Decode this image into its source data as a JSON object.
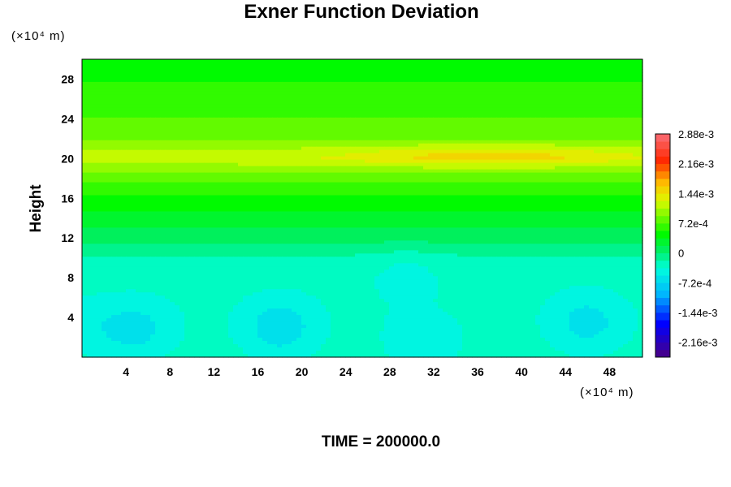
{
  "chart_data": {
    "type": "heatmap",
    "title": "Exner Function Deviation",
    "ylabel": "Height",
    "y_unit": "(×10⁴ m)",
    "x_unit": "(×10⁴ m)",
    "xlim": [
      0,
      51
    ],
    "ylim": [
      0,
      30
    ],
    "x_ticks": [
      "4",
      "8",
      "12",
      "16",
      "20",
      "24",
      "28",
      "32",
      "36",
      "40",
      "44",
      "48"
    ],
    "y_ticks": [
      "4",
      "8",
      "12",
      "16",
      "20",
      "24",
      "28"
    ],
    "colorbar": {
      "min": -0.00252,
      "max": 0.00288,
      "labels": [
        "2.88e-3",
        "2.16e-3",
        "1.44e-3",
        "7.2e-4",
        "0",
        "-7.2e-4",
        "-1.44e-3",
        "-2.16e-3"
      ]
    },
    "footer": "TIME = 200000.0",
    "background_profile": {
      "heights": [
        0,
        2,
        4,
        6,
        8,
        10,
        11,
        12,
        13,
        14,
        15,
        16,
        17,
        18,
        19,
        20,
        21,
        22,
        24,
        26,
        28,
        30
      ],
      "values": [
        -0.0003,
        -0.00032,
        -0.00033,
        -0.00032,
        -0.0003,
        -0.00022,
        -4e-05,
        8e-05,
        0.00018,
        0.00028,
        0.00038,
        0.00048,
        0.00062,
        0.0008,
        0.001,
        0.00118,
        0.00104,
        0.00088,
        0.00072,
        0.00062,
        0.00052,
        0.00042
      ]
    },
    "features": [
      {
        "x": 5,
        "y": 2.8,
        "value": -0.0006
      },
      {
        "x": 18,
        "y": 3.0,
        "value": -0.00068
      },
      {
        "x": 46,
        "y": 3.5,
        "value": -0.00062
      },
      {
        "x": 31,
        "y": 1.2,
        "value": -0.0005
      },
      {
        "x": 1,
        "y": 3.0,
        "value": -0.00045
      },
      {
        "x": 29.5,
        "y": 8.5,
        "value": -0.00042
      },
      {
        "x": 37,
        "y": 20.3,
        "value": 0.00152
      },
      {
        "x": 15,
        "y": 21.0,
        "value": 0.00105
      }
    ]
  }
}
